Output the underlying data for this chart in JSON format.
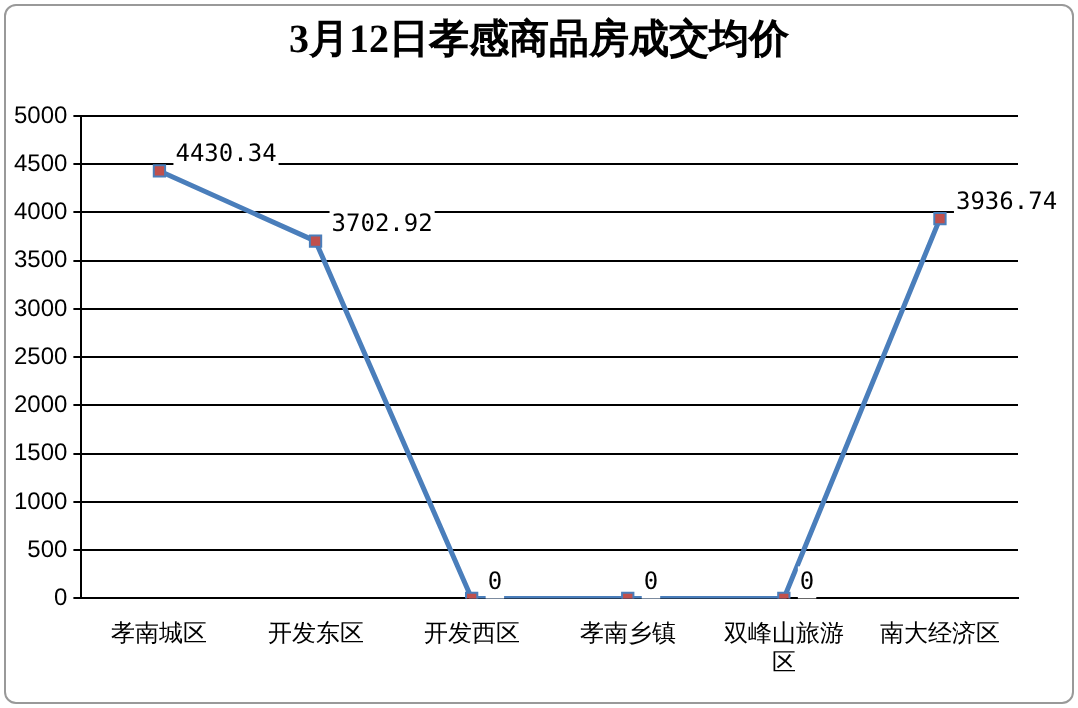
{
  "chart_data": {
    "type": "line",
    "title": "3月12日孝感商品房成交均价",
    "categories": [
      "孝南城区",
      "开发东区",
      "开发西区",
      "孝南乡镇",
      "双峰山旅游区",
      "南大经济区"
    ],
    "series": [
      {
        "color": "#4a7ebb",
        "values": [
          4430.34,
          3702.92,
          0,
          0,
          0,
          3936.74
        ]
      }
    ],
    "ylim": [
      0,
      5000
    ],
    "yticks": [
      0,
      500,
      1000,
      1500,
      2000,
      2500,
      3000,
      3500,
      4000,
      4500,
      5000
    ],
    "grid": "y",
    "marker": "square",
    "line_style": "solid",
    "data_labels": true,
    "legend": false
  }
}
